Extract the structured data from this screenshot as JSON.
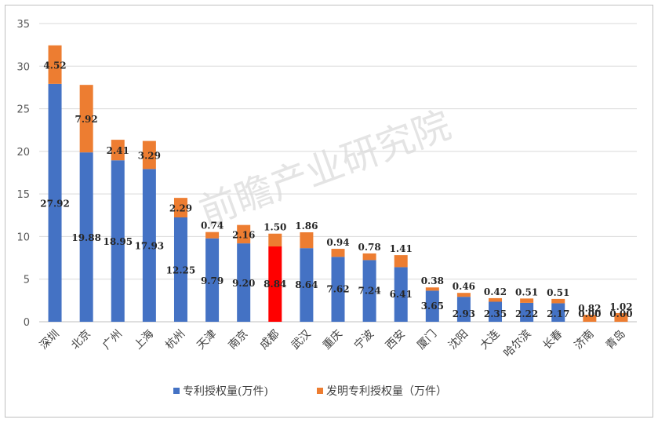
{
  "watermark": "前瞻产业研究院",
  "colors": {
    "base": "#4472C4",
    "invention": "#ED7D31",
    "highlight": "#FF0000",
    "grid": "#d9d9d9"
  },
  "legend": {
    "base": "专利授权量(万件)",
    "invention": "发明专利授权量（万件）"
  },
  "chart_data": {
    "type": "bar",
    "stacked": true,
    "categories": [
      "深圳",
      "北京",
      "广州",
      "上海",
      "杭州",
      "天津",
      "南京",
      "成都",
      "武汉",
      "重庆",
      "宁波",
      "西安",
      "厦门",
      "沈阳",
      "大连",
      "哈尔滨",
      "长春",
      "济南",
      "青岛"
    ],
    "series": [
      {
        "name": "专利授权量(万件)",
        "values": [
          27.92,
          19.88,
          18.95,
          17.93,
          12.25,
          9.79,
          9.2,
          8.84,
          8.64,
          7.62,
          7.24,
          6.41,
          3.65,
          2.93,
          2.35,
          2.22,
          2.17,
          0.0,
          0.0
        ]
      },
      {
        "name": "发明专利授权量（万件）",
        "values": [
          4.52,
          7.92,
          2.41,
          3.29,
          2.29,
          0.74,
          2.16,
          1.5,
          1.86,
          0.94,
          0.78,
          1.41,
          0.38,
          0.46,
          0.42,
          0.51,
          0.51,
          0.82,
          1.02
        ]
      }
    ],
    "base_labels": [
      "27.92",
      "19.88",
      "18.95",
      "17.93",
      "12.25",
      "9.79",
      "9.20",
      "8.84",
      "8.64",
      "7.62",
      "7.24",
      "6.41",
      "3.65",
      "2.93",
      "2.35",
      "2.22",
      "2.17",
      "0.00",
      "0.00"
    ],
    "invention_labels": [
      "4.52",
      "7.92",
      "2.41",
      "3.29",
      "2.29",
      "0.74",
      "2.16",
      "1.50",
      "1.86",
      "0.94",
      "0.78",
      "1.41",
      "0.38",
      "0.46",
      "0.42",
      "0.51",
      "0.51",
      "0.82",
      "1.02"
    ],
    "highlight_category": "成都",
    "ylim": [
      0,
      35
    ],
    "yticks": [
      "0",
      "5",
      "10",
      "15",
      "20",
      "25",
      "30",
      "35"
    ],
    "grid": true,
    "legend_position": "bottom"
  }
}
